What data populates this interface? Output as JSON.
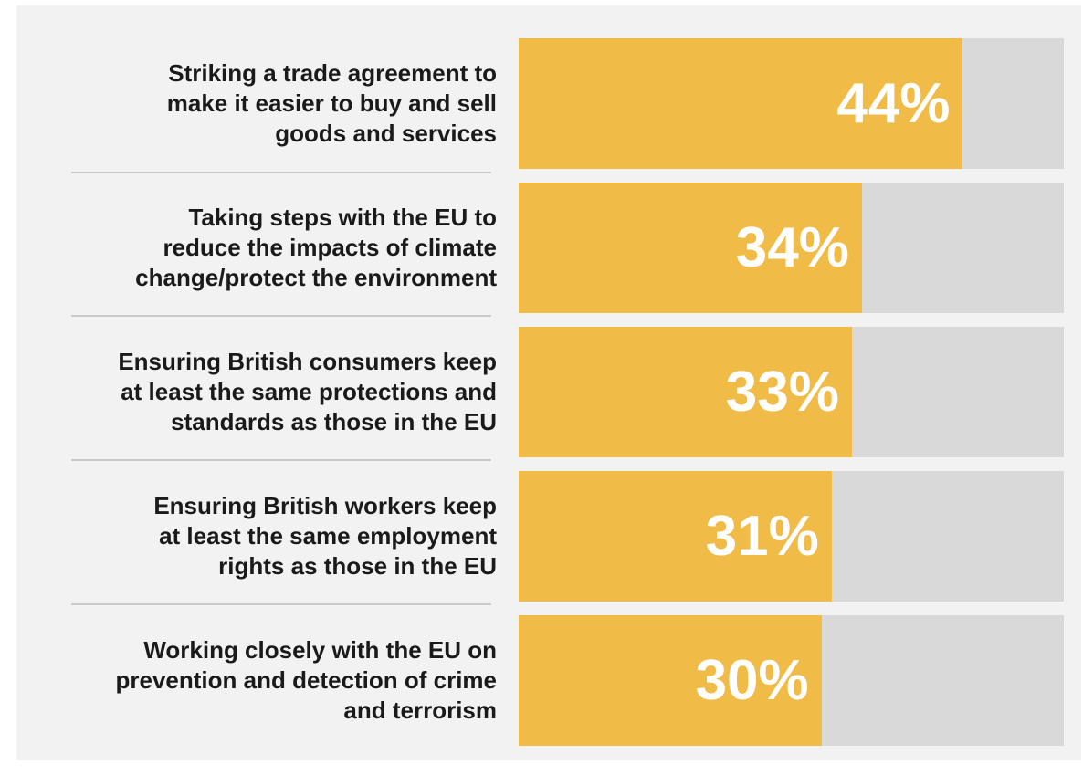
{
  "colors": {
    "bar": "#f0bc47",
    "track": "#d9d9d9",
    "background": "#f2f2f2",
    "label": "#1a1a1a",
    "value_text": "#ffffff"
  },
  "chart_data": {
    "type": "bar",
    "orientation": "horizontal",
    "grid": false,
    "xlim": [
      0,
      54
    ],
    "categories": [
      "Striking a trade agreement to make it easier to buy and sell goods and services",
      "Taking steps with the EU to reduce the impacts of climate change/protect the environment",
      "Ensuring British consumers keep at least the same protections and standards as those in the EU",
      "Ensuring British workers keep at least the same employment rights as those in the EU",
      "Working closely with the EU on prevention and detection of crime and terrorism"
    ],
    "label_lines": [
      [
        "Striking a trade agreement to",
        "make it easier to buy and sell",
        "goods and services"
      ],
      [
        "Taking steps with the EU to",
        "reduce the impacts of climate",
        "change/protect the environment"
      ],
      [
        "Ensuring British consumers keep",
        "at least the same protections and",
        "standards as those in the EU"
      ],
      [
        "Ensuring British workers keep",
        "at least the same employment",
        "rights as those in the EU"
      ],
      [
        "Working closely with the EU on",
        "prevention and detection of crime",
        "and terrorism"
      ]
    ],
    "values": [
      44,
      34,
      33,
      31,
      30
    ],
    "value_labels": [
      "44%",
      "34%",
      "33%",
      "31%",
      "30%"
    ]
  }
}
